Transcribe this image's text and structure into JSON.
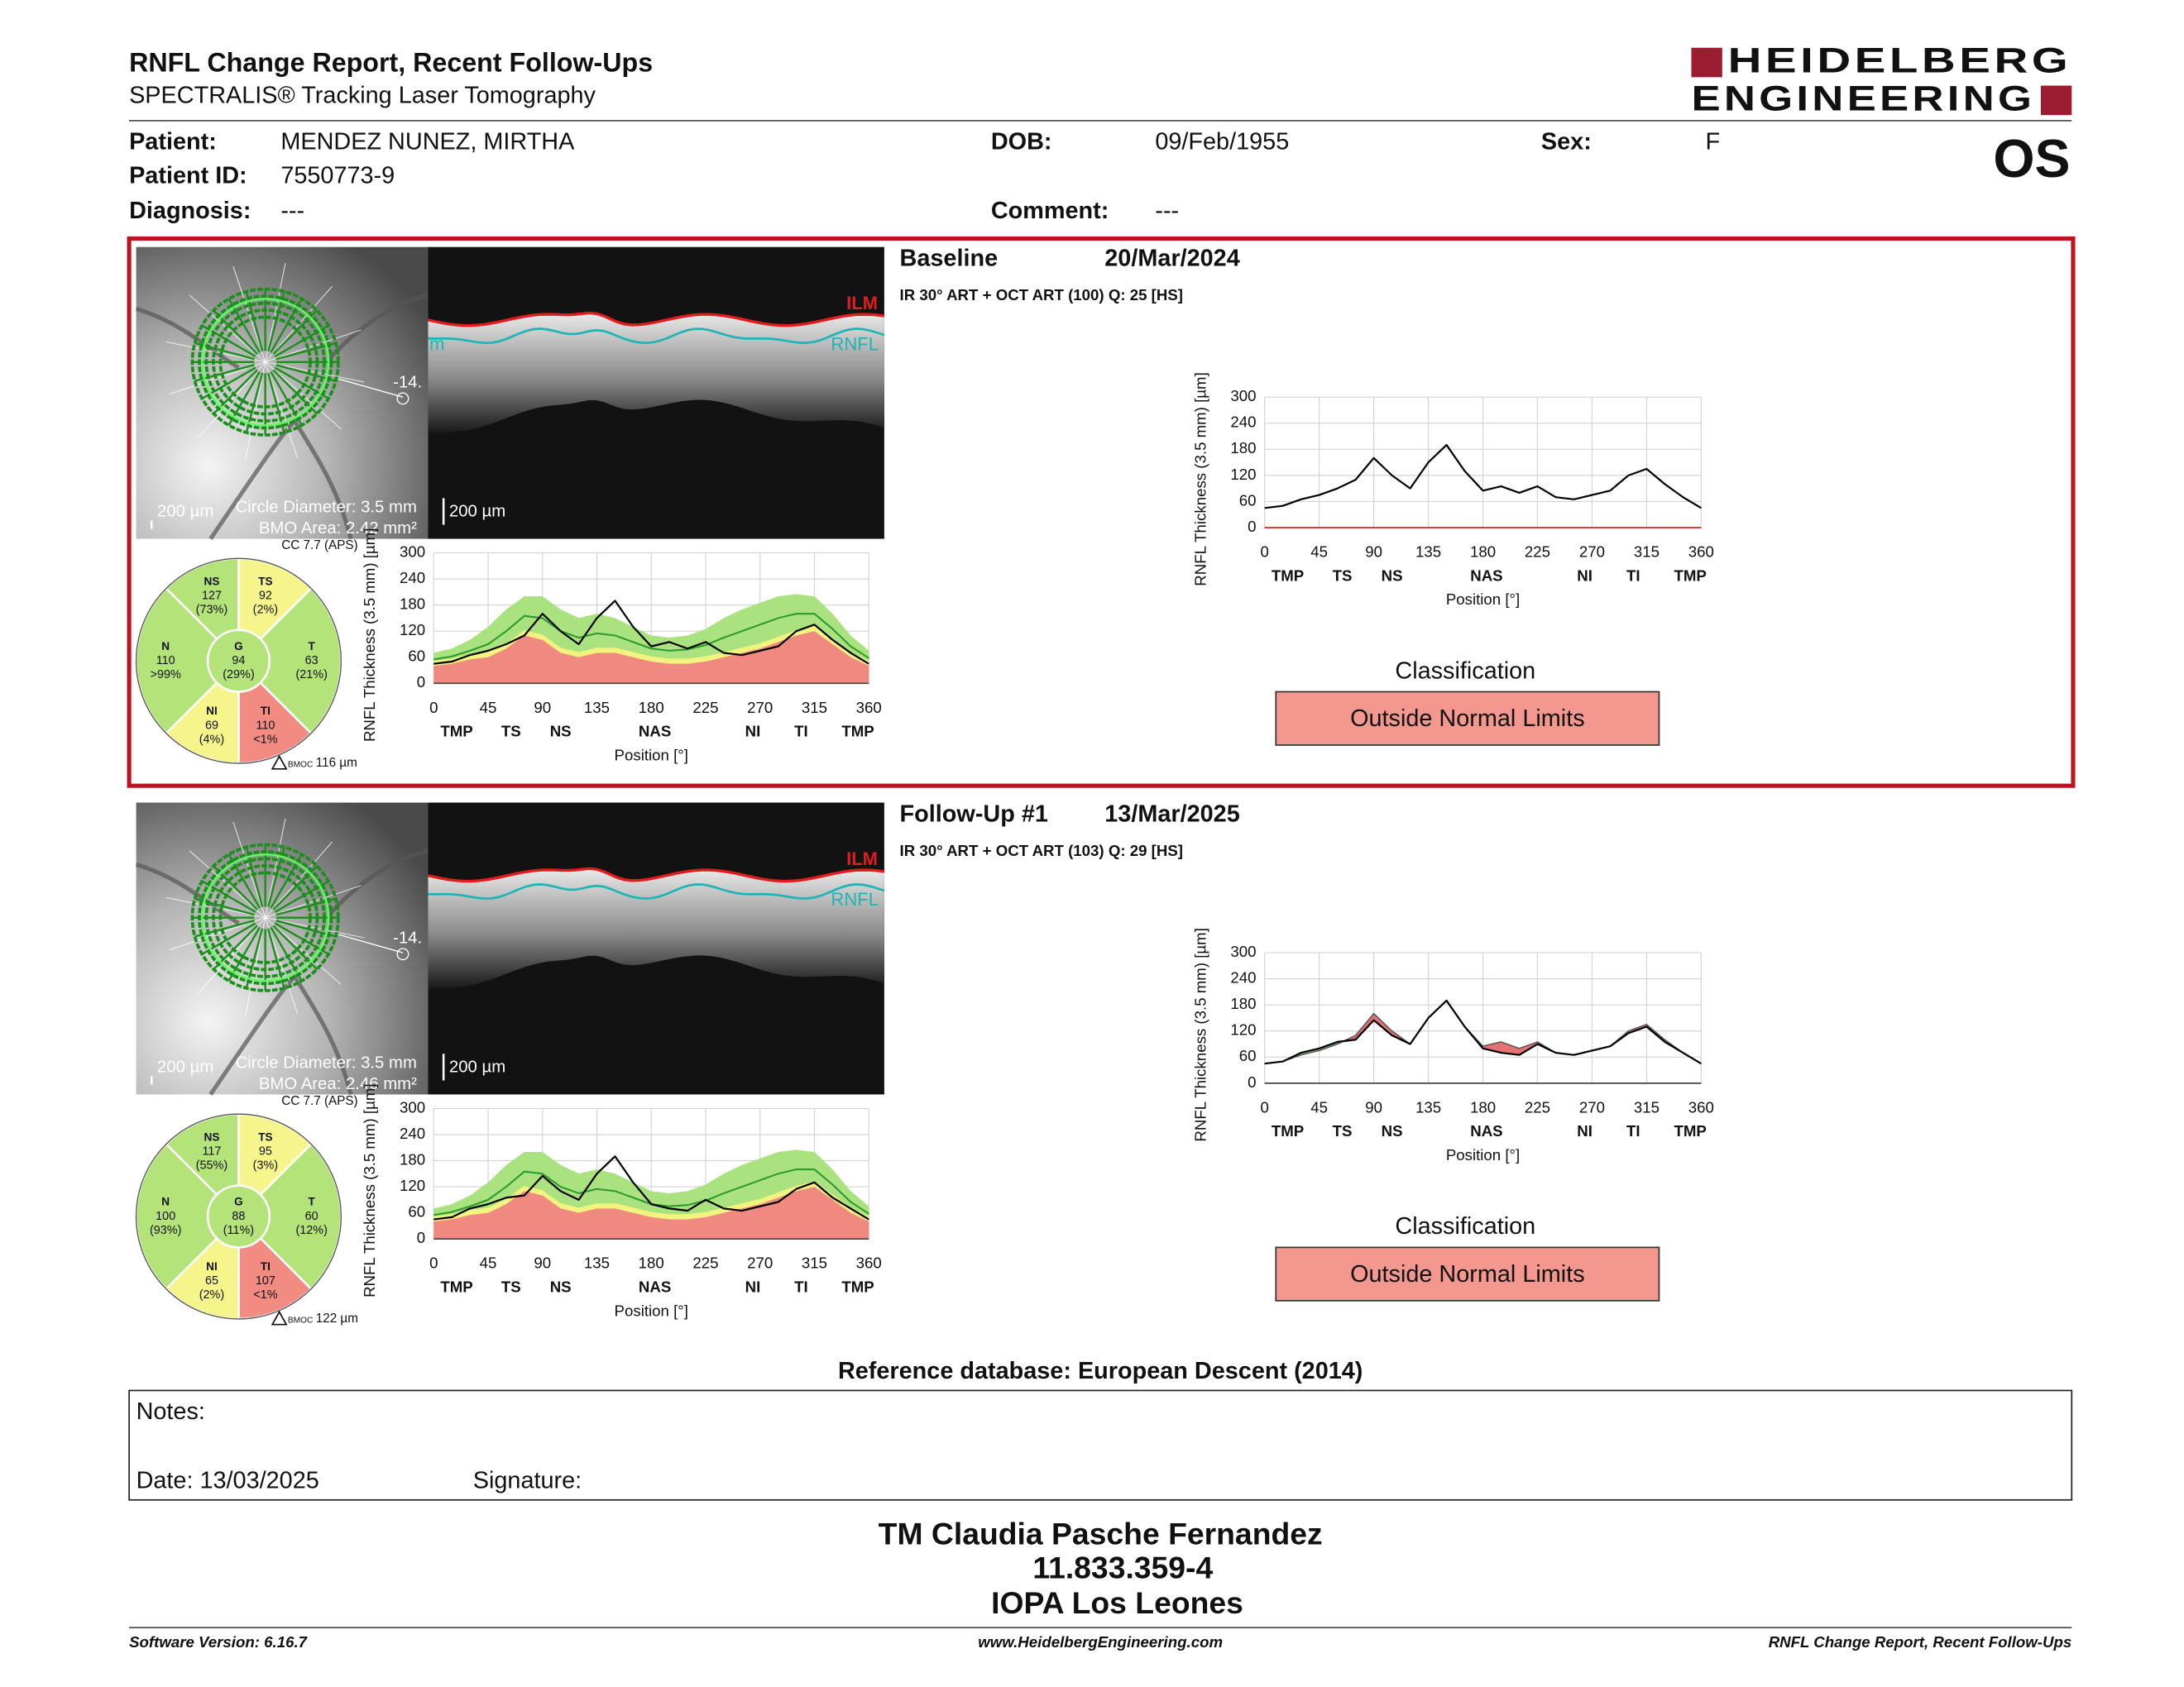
{
  "header": {
    "title": "RNFL Change Report, Recent Follow-Ups",
    "subtitle": "SPECTRALIS® Tracking Laser Tomography",
    "logo": [
      "HEIDELBERG",
      "ENGINEERING"
    ],
    "eye": "OS"
  },
  "patient": [
    {
      "label": "Patient:",
      "value": "MENDEZ NUNEZ, MIRTHA"
    },
    {
      "label": "DOB:",
      "value": "09/Feb/1955"
    },
    {
      "label": "Sex:",
      "value": "F"
    },
    {
      "label": "Patient ID:",
      "value": "7550773-9"
    },
    {
      "label": "Diagnosis:",
      "value": "---"
    },
    {
      "label": "Comment:",
      "value": "---"
    }
  ],
  "plot": {
    "ylabel": "RNFL Thickness (3.5 mm) [µm]",
    "xlabel": "Position [°]",
    "xlim": [
      0,
      360
    ],
    "ylim": [
      0,
      300
    ],
    "xticks": [
      0,
      45,
      90,
      135,
      180,
      225,
      270,
      315,
      360
    ],
    "yticks": [
      0,
      60,
      120,
      180,
      240,
      300
    ],
    "regions": [
      {
        "value": 19,
        "label": "TMP"
      },
      {
        "value": 64,
        "label": "TS"
      },
      {
        "value": 105,
        "label": "NS"
      },
      {
        "value": 183,
        "label": "NAS"
      },
      {
        "value": 264,
        "label": "NI"
      },
      {
        "value": 304,
        "label": "TI"
      },
      {
        "value": 351,
        "label": "TMP"
      }
    ]
  },
  "normative": {
    "positions": [
      0,
      15,
      30,
      45,
      60,
      75,
      90,
      105,
      120,
      135,
      150,
      165,
      180,
      195,
      210,
      225,
      240,
      255,
      270,
      285,
      300,
      315,
      330,
      345,
      360
    ],
    "p1": [
      40,
      45,
      55,
      60,
      80,
      110,
      100,
      70,
      60,
      70,
      70,
      60,
      50,
      45,
      45,
      50,
      60,
      70,
      80,
      95,
      110,
      120,
      90,
      60,
      40
    ],
    "p5": [
      52,
      57,
      67,
      72,
      92,
      122,
      112,
      82,
      72,
      82,
      82,
      72,
      62,
      57,
      57,
      62,
      72,
      82,
      92,
      107,
      122,
      132,
      102,
      72,
      52
    ],
    "p99": [
      70,
      80,
      100,
      130,
      170,
      200,
      200,
      170,
      150,
      160,
      150,
      130,
      110,
      105,
      110,
      125,
      150,
      170,
      185,
      200,
      205,
      200,
      160,
      110,
      75
    ],
    "mean": [
      55,
      62,
      75,
      90,
      120,
      155,
      150,
      120,
      105,
      115,
      110,
      95,
      80,
      75,
      78,
      88,
      105,
      120,
      135,
      150,
      160,
      160,
      125,
      85,
      58
    ]
  },
  "exams": [
    {
      "title": "Baseline",
      "date": "20/Mar/2024",
      "scan": "IR 30° ART + OCT ART (100) Q: 25 [HS]",
      "scale": "200 µm",
      "oct_scale": "200 µm",
      "circle_diameter": "Circle Diameter: 3.5 mm",
      "bmo_area": "BMO Area: 2.42 mm²",
      "angle": "-14.",
      "ilm": "ILM",
      "rnfl": "RNFL",
      "rnfl_cut": "m",
      "cc": "CC 7.7 (APS)",
      "bmoc_label": "BMOC",
      "bmoc": "116 µm",
      "sectors": [
        {
          "name": "NS",
          "value": 127,
          "percentile": "(73%)",
          "color": "#b4e37a"
        },
        {
          "name": "TS",
          "value": 92,
          "percentile": "(2%)",
          "color": "#f5f58c"
        },
        {
          "name": "T",
          "value": 63,
          "percentile": "(21%)",
          "color": "#b4e37a"
        },
        {
          "name": "TI",
          "value": 110,
          "percentile": "<1%",
          "color": "#f28b82"
        },
        {
          "name": "NI",
          "value": 69,
          "percentile": "(4%)",
          "color": "#f5f58c"
        },
        {
          "name": "N",
          "value": 110,
          "percentile": ">99%",
          "color": "#b4e37a"
        },
        {
          "name": "G",
          "value": 94,
          "percentile": "(29%)",
          "color": "#b4e37a"
        }
      ],
      "profile": [
        45,
        50,
        65,
        75,
        90,
        110,
        160,
        120,
        90,
        150,
        190,
        130,
        85,
        95,
        80,
        95,
        70,
        65,
        75,
        85,
        120,
        135,
        100,
        70,
        45
      ],
      "classification_title": "Classification",
      "classification": "Outside Normal Limits",
      "classification_color": "#f4978e"
    },
    {
      "title": "Follow-Up #1",
      "date": "13/Mar/2025",
      "scan": "IR 30° ART + OCT ART (103) Q: 29 [HS]",
      "scale": "200 µm",
      "oct_scale": "200 µm",
      "circle_diameter": "Circle Diameter: 3.5 mm",
      "bmo_area": "BMO Area: 2.46 mm²",
      "angle": "-14.",
      "ilm": "ILM",
      "rnfl": "RNFL",
      "rnfl_cut": "",
      "cc": "CC 7.7 (APS)",
      "bmoc_label": "BMOC",
      "bmoc": "122 µm",
      "sectors": [
        {
          "name": "NS",
          "value": 117,
          "percentile": "(55%)",
          "color": "#b4e37a"
        },
        {
          "name": "TS",
          "value": 95,
          "percentile": "(3%)",
          "color": "#f5f58c"
        },
        {
          "name": "T",
          "value": 60,
          "percentile": "(12%)",
          "color": "#b4e37a"
        },
        {
          "name": "TI",
          "value": 107,
          "percentile": "<1%",
          "color": "#f28b82"
        },
        {
          "name": "NI",
          "value": 65,
          "percentile": "(2%)",
          "color": "#f5f58c"
        },
        {
          "name": "N",
          "value": 100,
          "percentile": "(93%)",
          "color": "#b4e37a"
        },
        {
          "name": "G",
          "value": 88,
          "percentile": "(11%)",
          "color": "#b4e37a"
        }
      ],
      "profile": [
        45,
        50,
        70,
        80,
        95,
        100,
        145,
        110,
        90,
        150,
        190,
        130,
        80,
        70,
        65,
        90,
        70,
        65,
        75,
        85,
        115,
        130,
        95,
        70,
        45
      ],
      "classification_title": "Classification",
      "classification": "Outside Normal Limits",
      "classification_color": "#f4978e"
    }
  ],
  "reference": "Reference database: European Descent (2014)",
  "notes": {
    "label": "Notes:",
    "date": "Date: 13/03/2025",
    "signature": "Signature:"
  },
  "signature_block": [
    "TM Claudia Pasche Fernandez",
    "11.833.359-4",
    "IOPA Los Leones"
  ],
  "footer": {
    "left": "Software Version: 6.16.7",
    "center": "www.HeidelbergEngineering.com",
    "right": "RNFL Change Report, Recent Follow-Ups"
  }
}
